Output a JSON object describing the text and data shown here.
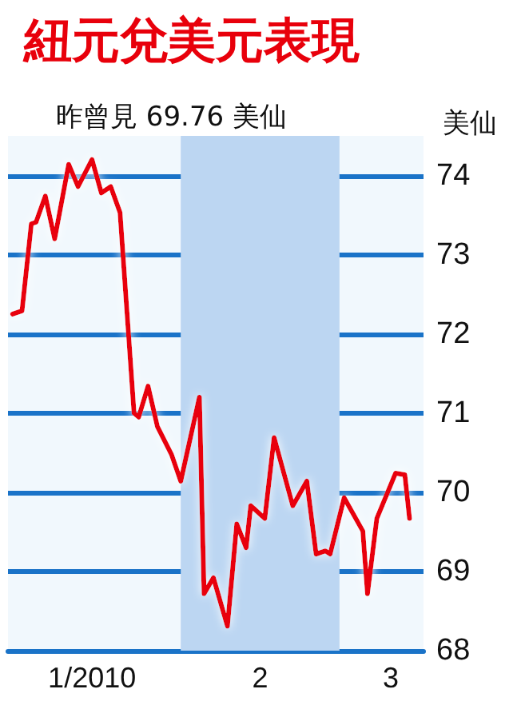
{
  "chart_data": {
    "type": "line",
    "title": "紐元兌美元表現",
    "subtitle": "昨曾見 69.76 美仙",
    "ylabel": "美仙",
    "x": [
      "2009-12-23",
      "2009-12-25",
      "2009-12-27",
      "2009-12-28",
      "2009-12-30",
      "2010-01-01",
      "2010-01-04",
      "2010-01-06",
      "2010-01-09",
      "2010-01-11",
      "2010-01-13",
      "2010-01-15",
      "2010-01-18",
      "2010-01-19",
      "2010-01-21",
      "2010-01-23",
      "2010-01-26",
      "2010-01-28",
      "2010-02-01",
      "2010-02-02",
      "2010-02-04",
      "2010-02-07",
      "2010-02-09",
      "2010-02-11",
      "2010-02-12",
      "2010-02-15",
      "2010-02-17",
      "2010-02-21",
      "2010-02-24",
      "2010-02-26",
      "2010-02-28",
      "2010-03-01",
      "2010-03-04",
      "2010-03-08",
      "2010-03-09",
      "2010-03-11",
      "2010-03-15",
      "2010-03-17",
      "2010-03-18"
    ],
    "series": [
      {
        "color": "#e8000b",
        "values": [
          72.25,
          72.29,
          73.39,
          73.41,
          73.74,
          73.2,
          74.14,
          73.86,
          74.2,
          73.78,
          73.86,
          73.53,
          71.0,
          70.95,
          71.34,
          70.83,
          70.48,
          70.14,
          71.2,
          68.72,
          68.92,
          68.31,
          69.6,
          69.3,
          69.83,
          69.67,
          70.69,
          69.83,
          70.14,
          69.22,
          69.26,
          69.22,
          69.93,
          69.51,
          68.72,
          69.67,
          70.24,
          70.22,
          69.67
        ]
      }
    ],
    "xlim": [
      "2009-12-22",
      "2010-03-21"
    ],
    "xticks": [
      {
        "value": "2010-01-09",
        "label": "1/2010"
      },
      {
        "value": "2010-02-14",
        "label": "2"
      },
      {
        "value": "2010-03-14",
        "label": "3"
      }
    ],
    "ylim": [
      68,
      74.5
    ],
    "yticks": [
      68,
      69,
      70,
      71,
      72,
      73,
      74
    ],
    "bands": [
      {
        "axis": "x",
        "from": "2010-01-28",
        "to": "2010-03-03",
        "color": "#bcd6f2"
      }
    ],
    "grid": "y",
    "marker": "none",
    "line_style": "solid"
  }
}
